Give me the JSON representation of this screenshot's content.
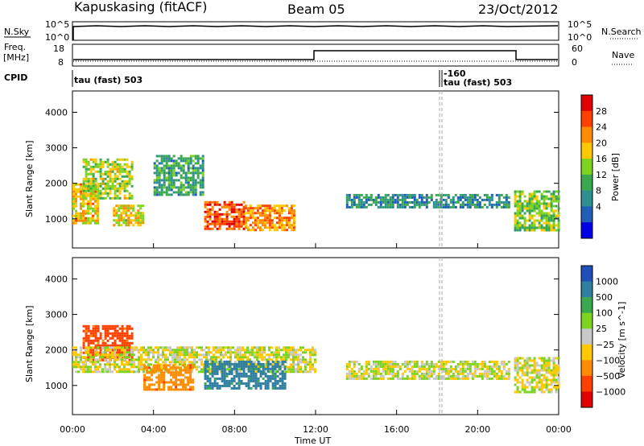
{
  "header": {
    "station": "Kapuskasing (fitACF)",
    "beam": "Beam 05",
    "date": "23/Oct/2012"
  },
  "panel_labels": {
    "nsky": "N.Sky",
    "nsearch": "N.Search",
    "freq": "Freq.",
    "freq_unit": "[MHz]",
    "nave": "Nave",
    "cpid": "CPID"
  },
  "cpid_labels": {
    "first": "tau (fast) 503",
    "second_code": "-160",
    "second": "tau (fast) 503"
  },
  "noise_axis": {
    "left": [
      "10^5",
      "10^0"
    ],
    "right": [
      "10^5",
      "10^0"
    ]
  },
  "freq_axis": {
    "left": [
      "18",
      "8"
    ],
    "right": [
      "60",
      "0"
    ]
  },
  "chart_data": [
    {
      "type": "heatmap",
      "title": "Power",
      "xlabel": "Time UT",
      "ylabel": "Slant Range [km]",
      "xlim_hours": [
        0,
        24
      ],
      "ylim_km": [
        180,
        4600
      ],
      "x_ticks": [
        "00:00",
        "04:00",
        "08:00",
        "12:00",
        "16:00",
        "20:00",
        "00:00"
      ],
      "y_ticks": [
        "1000",
        "2000",
        "3000",
        "4000"
      ],
      "colorbar_label": "Power [dB]",
      "colorbar_ticks": [
        "28",
        "24",
        "20",
        "16",
        "12",
        "8",
        "4"
      ],
      "colorbar_colors": [
        "#e00000",
        "#ff4000",
        "#ff8c00",
        "#ffc800",
        "#7ed321",
        "#3aa84e",
        "#2f8f8f",
        "#1f5fb8",
        "#0000e6"
      ],
      "echo_regions": [
        {
          "t_start": 0.0,
          "t_end": 1.2,
          "r_min": 900,
          "r_max": 2000,
          "power_db": 20
        },
        {
          "t_start": 0.5,
          "t_end": 3.0,
          "r_min": 1600,
          "r_max": 2700,
          "power_db": 16
        },
        {
          "t_start": 2.0,
          "t_end": 3.5,
          "r_min": 800,
          "r_max": 1400,
          "power_db": 18
        },
        {
          "t_start": 4.0,
          "t_end": 6.5,
          "r_min": 1700,
          "r_max": 2800,
          "power_db": 10
        },
        {
          "t_start": 6.5,
          "t_end": 8.5,
          "r_min": 700,
          "r_max": 1500,
          "power_db": 26
        },
        {
          "t_start": 8.5,
          "t_end": 11.0,
          "r_min": 700,
          "r_max": 1400,
          "power_db": 22
        },
        {
          "t_start": 13.5,
          "t_end": 21.5,
          "r_min": 1300,
          "r_max": 1700,
          "power_db": 8
        },
        {
          "t_start": 21.8,
          "t_end": 24.0,
          "r_min": 700,
          "r_max": 1800,
          "power_db": 14
        }
      ],
      "cutoffs": {
        "t_night_gap": [
          12.0,
          13.5
        ],
        "t_dashed": 18.2
      }
    },
    {
      "type": "heatmap",
      "title": "Velocity",
      "xlabel": "Time UT",
      "ylabel": "Slant Range [km]",
      "xlim_hours": [
        0,
        24
      ],
      "ylim_km": [
        180,
        4600
      ],
      "x_ticks": [
        "00:00",
        "04:00",
        "08:00",
        "12:00",
        "16:00",
        "20:00",
        "00:00"
      ],
      "y_ticks": [
        "1000",
        "2000",
        "3000",
        "4000"
      ],
      "colorbar_label": "Velocity [m s^-1]",
      "colorbar_ticks": [
        "1000",
        "500",
        "100",
        "25",
        "−25",
        "−100",
        "−500",
        "−1000"
      ],
      "colorbar_colors": [
        "#1f4fb8",
        "#2e7fa0",
        "#3aa84e",
        "#7ed321",
        "#c8c8c8",
        "#ffc800",
        "#ff8c00",
        "#ff4000",
        "#e00000"
      ],
      "echo_regions": [
        {
          "t_start": 0.5,
          "t_end": 3.0,
          "r_min": 1700,
          "r_max": 2700,
          "velocity": -300
        },
        {
          "t_start": 0.0,
          "t_end": 12.0,
          "r_min": 1400,
          "r_max": 2100,
          "velocity": 0
        },
        {
          "t_start": 3.5,
          "t_end": 6.0,
          "r_min": 900,
          "r_max": 1600,
          "velocity": -200
        },
        {
          "t_start": 6.5,
          "t_end": 10.5,
          "r_min": 900,
          "r_max": 1700,
          "velocity": 300
        },
        {
          "t_start": 13.5,
          "t_end": 21.5,
          "r_min": 1200,
          "r_max": 1700,
          "velocity": 0
        },
        {
          "t_start": 21.8,
          "t_end": 24.0,
          "r_min": 800,
          "r_max": 1800,
          "velocity": 0
        }
      ]
    }
  ]
}
